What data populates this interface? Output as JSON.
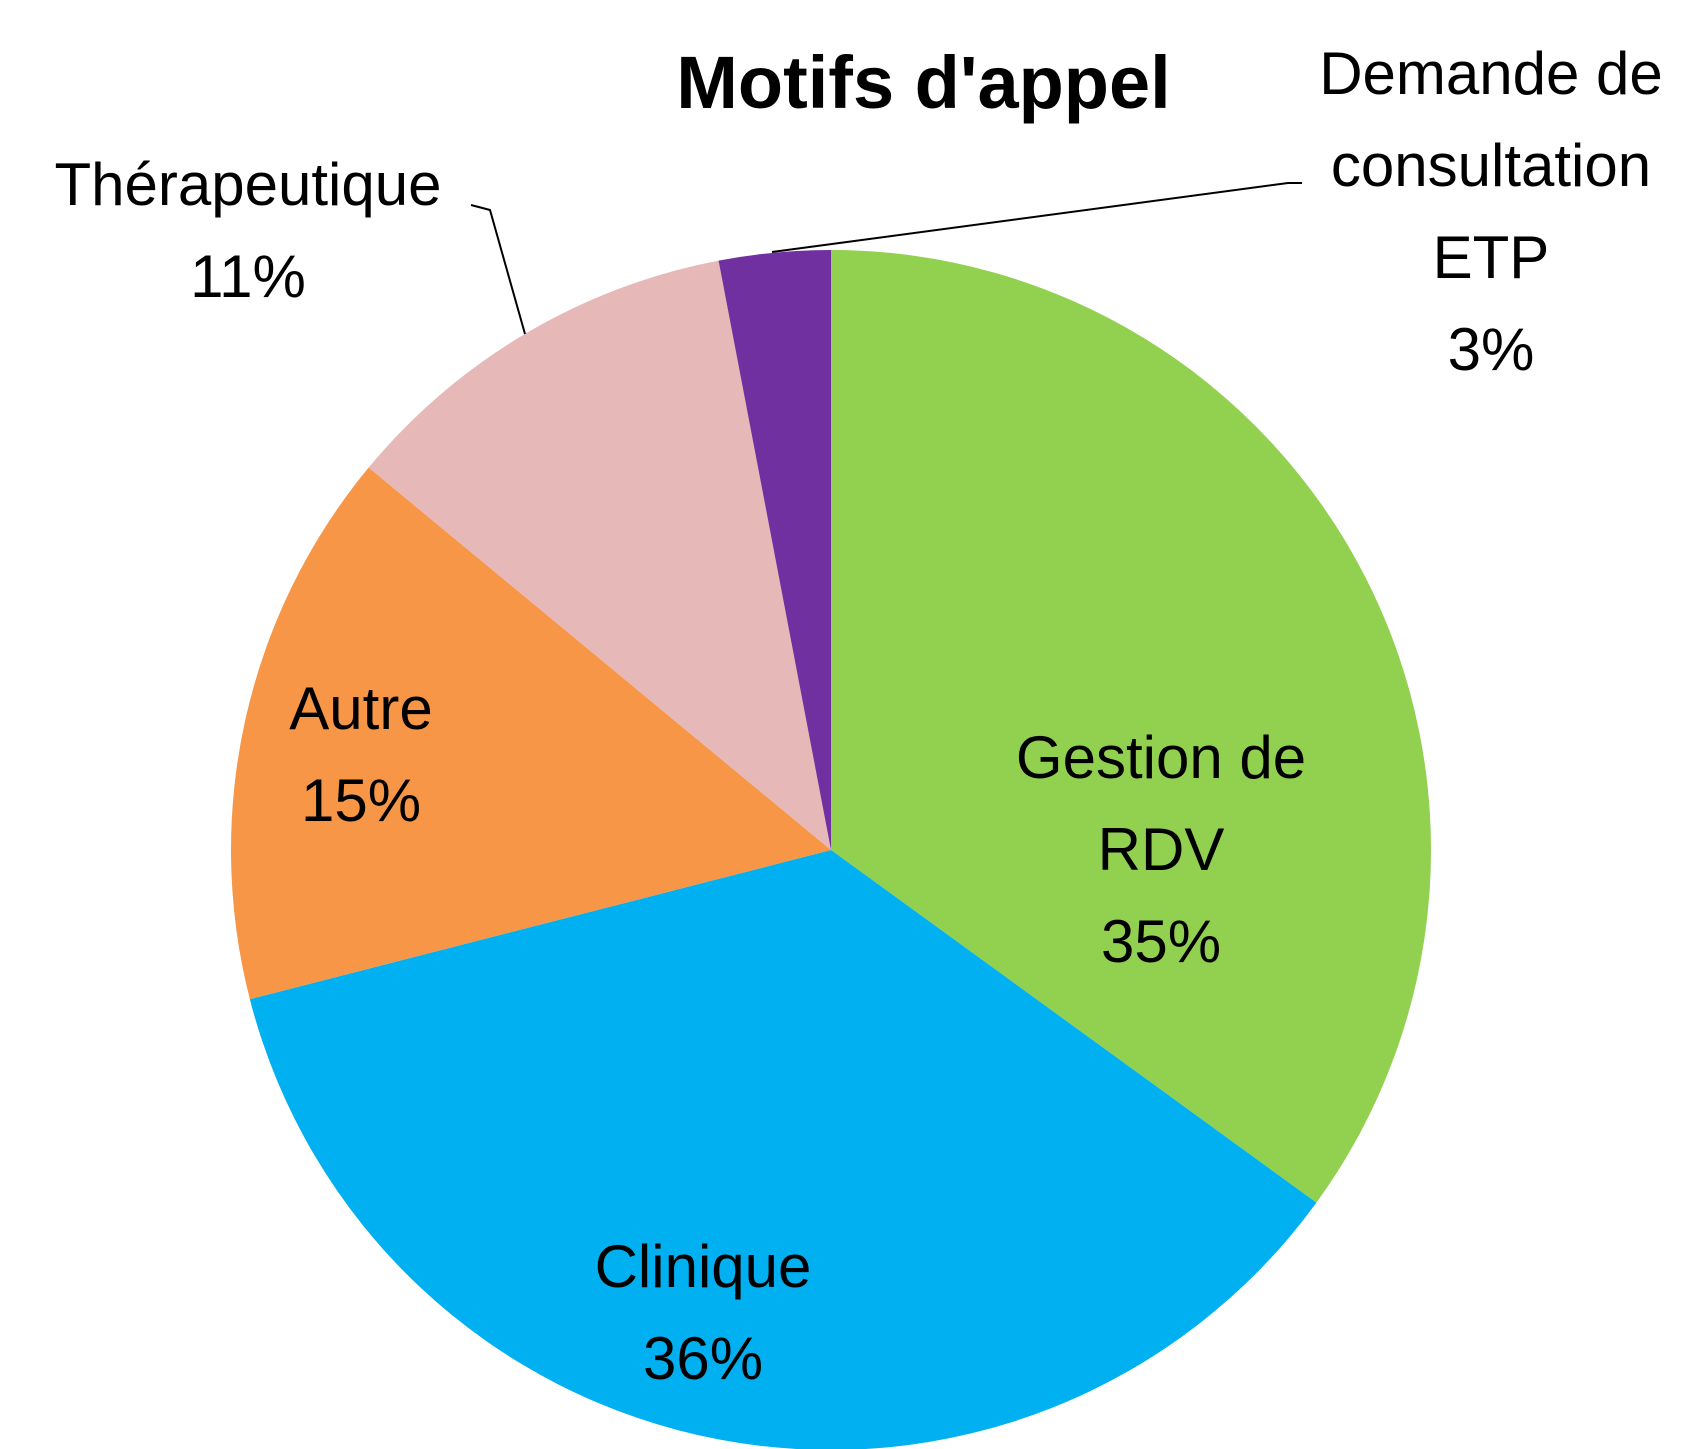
{
  "chart_data": {
    "type": "pie",
    "title": "Motifs d'appel",
    "categories": [
      "Gestion de RDV",
      "Clinique",
      "Autre",
      "Thérapeutique",
      "Demande de consultation ETP"
    ],
    "values": [
      35,
      36,
      15,
      11,
      3
    ],
    "value_labels": [
      "35%",
      "36%",
      "15%",
      "11%",
      "3%"
    ],
    "colors": [
      "#92d050",
      "#00b0f0",
      "#f79646",
      "#e6b9b8",
      "#7030a0"
    ]
  }
}
